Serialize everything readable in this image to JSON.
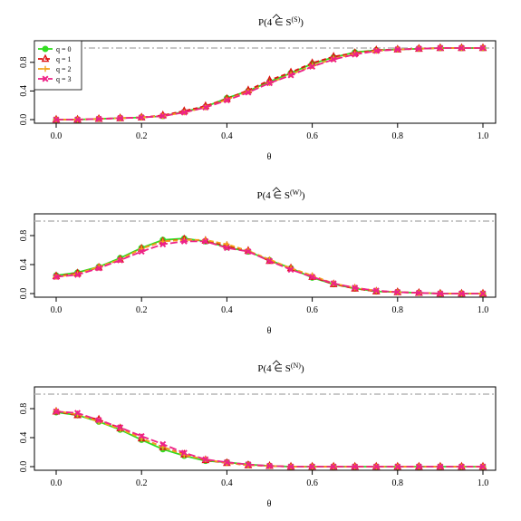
{
  "chart_data": [
    {
      "type": "line",
      "title_prefix": "P(4 ∈ ",
      "title_symbol": "S",
      "title_sup": "(S)",
      "title_suffix": ")",
      "xlabel": "θ",
      "xlim": [
        0,
        1
      ],
      "ylim": [
        0,
        1
      ],
      "xticks": [
        "0.0",
        "0.2",
        "0.4",
        "0.6",
        "0.8",
        "1.0"
      ],
      "yticks": [
        "0.0",
        "0.4",
        "0.8"
      ],
      "reference_line": 1.0,
      "legend_position": "top-left",
      "x": [
        0,
        0.05,
        0.1,
        0.15,
        0.2,
        0.25,
        0.3,
        0.35,
        0.4,
        0.45,
        0.5,
        0.55,
        0.6,
        0.65,
        0.7,
        0.75,
        0.8,
        0.85,
        0.9,
        0.95,
        1.0
      ],
      "series": [
        {
          "name": "q = 0",
          "color": "#33dd22",
          "marker": "circle",
          "dash": "solid",
          "values": [
            0.0,
            0.0,
            0.01,
            0.02,
            0.03,
            0.05,
            0.11,
            0.18,
            0.3,
            0.4,
            0.53,
            0.65,
            0.78,
            0.87,
            0.94,
            0.97,
            0.98,
            0.99,
            1.0,
            1.0,
            1.0
          ]
        },
        {
          "name": "q = 1",
          "color": "#dd1111",
          "marker": "triangle",
          "dash": "dashed",
          "values": [
            0.0,
            0.0,
            0.01,
            0.02,
            0.03,
            0.06,
            0.12,
            0.19,
            0.29,
            0.41,
            0.55,
            0.66,
            0.79,
            0.88,
            0.93,
            0.97,
            0.98,
            0.99,
            1.0,
            1.0,
            1.0
          ]
        },
        {
          "name": "q = 2",
          "color": "#f2a51a",
          "marker": "plus",
          "dash": "dashed",
          "values": [
            0.0,
            0.0,
            0.01,
            0.02,
            0.03,
            0.05,
            0.1,
            0.17,
            0.28,
            0.39,
            0.51,
            0.63,
            0.75,
            0.85,
            0.92,
            0.96,
            0.98,
            0.99,
            1.0,
            1.0,
            1.0
          ]
        },
        {
          "name": "q = 3",
          "color": "#ee2288",
          "marker": "x",
          "dash": "longdash",
          "values": [
            0.0,
            0.0,
            0.01,
            0.02,
            0.03,
            0.05,
            0.1,
            0.17,
            0.27,
            0.38,
            0.51,
            0.62,
            0.74,
            0.84,
            0.91,
            0.96,
            0.98,
            0.99,
            1.0,
            1.0,
            1.0
          ]
        }
      ]
    },
    {
      "type": "line",
      "title_prefix": "P(4 ∈ ",
      "title_symbol": "S",
      "title_sup": "(W)",
      "title_suffix": ")",
      "xlabel": "θ",
      "xlim": [
        0,
        1
      ],
      "ylim": [
        0,
        1
      ],
      "xticks": [
        "0.0",
        "0.2",
        "0.4",
        "0.6",
        "0.8",
        "1.0"
      ],
      "yticks": [
        "0.0",
        "0.4",
        "0.8"
      ],
      "reference_line": 1.0,
      "x": [
        0,
        0.05,
        0.1,
        0.15,
        0.2,
        0.25,
        0.3,
        0.35,
        0.4,
        0.45,
        0.5,
        0.55,
        0.6,
        0.65,
        0.7,
        0.75,
        0.8,
        0.85,
        0.9,
        0.95,
        1.0
      ],
      "series": [
        {
          "name": "q = 0",
          "color": "#33dd22",
          "marker": "circle",
          "dash": "solid",
          "values": [
            0.25,
            0.29,
            0.37,
            0.49,
            0.63,
            0.74,
            0.76,
            0.72,
            0.64,
            0.58,
            0.46,
            0.35,
            0.22,
            0.13,
            0.07,
            0.03,
            0.02,
            0.01,
            0.0,
            0.0,
            0.0
          ]
        },
        {
          "name": "q = 1",
          "color": "#dd1111",
          "marker": "triangle",
          "dash": "dashed",
          "values": [
            0.24,
            0.28,
            0.36,
            0.47,
            0.62,
            0.72,
            0.75,
            0.73,
            0.66,
            0.59,
            0.45,
            0.35,
            0.23,
            0.13,
            0.07,
            0.03,
            0.02,
            0.01,
            0.0,
            0.0,
            0.0
          ]
        },
        {
          "name": "q = 2",
          "color": "#f2a51a",
          "marker": "plus",
          "dash": "dashed",
          "values": [
            0.23,
            0.27,
            0.37,
            0.47,
            0.62,
            0.72,
            0.74,
            0.74,
            0.68,
            0.59,
            0.47,
            0.35,
            0.25,
            0.14,
            0.08,
            0.04,
            0.02,
            0.01,
            0.0,
            0.0,
            0.0
          ]
        },
        {
          "name": "q = 3",
          "color": "#ee2288",
          "marker": "x",
          "dash": "longdash",
          "values": [
            0.23,
            0.26,
            0.35,
            0.46,
            0.58,
            0.68,
            0.72,
            0.72,
            0.63,
            0.58,
            0.45,
            0.33,
            0.23,
            0.14,
            0.08,
            0.04,
            0.02,
            0.01,
            0.0,
            0.0,
            0.0
          ]
        }
      ]
    },
    {
      "type": "line",
      "title_prefix": "P(4 ∈ ",
      "title_symbol": "S",
      "title_sup": "(N)",
      "title_suffix": ")",
      "xlabel": "θ",
      "xlim": [
        0,
        1
      ],
      "ylim": [
        0,
        1
      ],
      "xticks": [
        "0.0",
        "0.2",
        "0.4",
        "0.6",
        "0.8",
        "1.0"
      ],
      "yticks": [
        "0.0",
        "0.4",
        "0.8"
      ],
      "reference_line": 1.0,
      "x": [
        0,
        0.05,
        0.1,
        0.15,
        0.2,
        0.25,
        0.3,
        0.35,
        0.4,
        0.45,
        0.5,
        0.55,
        0.6,
        0.65,
        0.7,
        0.75,
        0.8,
        0.85,
        0.9,
        0.95,
        1.0
      ],
      "series": [
        {
          "name": "q = 0",
          "color": "#33dd22",
          "marker": "circle",
          "dash": "solid",
          "values": [
            0.75,
            0.71,
            0.62,
            0.51,
            0.37,
            0.24,
            0.15,
            0.08,
            0.06,
            0.03,
            0.01,
            0.0,
            0.0,
            0.0,
            0.0,
            0.0,
            0.0,
            0.0,
            0.0,
            0.0,
            0.0
          ]
        },
        {
          "name": "q = 1",
          "color": "#dd1111",
          "marker": "triangle",
          "dash": "dashed",
          "values": [
            0.76,
            0.71,
            0.65,
            0.53,
            0.39,
            0.27,
            0.17,
            0.09,
            0.05,
            0.02,
            0.01,
            0.0,
            0.0,
            0.0,
            0.0,
            0.0,
            0.0,
            0.0,
            0.0,
            0.0,
            0.0
          ]
        },
        {
          "name": "q = 2",
          "color": "#f2a51a",
          "marker": "plus",
          "dash": "dashed",
          "values": [
            0.77,
            0.72,
            0.62,
            0.52,
            0.39,
            0.27,
            0.16,
            0.1,
            0.05,
            0.02,
            0.01,
            0.0,
            0.0,
            0.0,
            0.0,
            0.0,
            0.0,
            0.0,
            0.0,
            0.0,
            0.0
          ]
        },
        {
          "name": "q = 3",
          "color": "#ee2288",
          "marker": "x",
          "dash": "longdash",
          "values": [
            0.76,
            0.74,
            0.64,
            0.54,
            0.42,
            0.31,
            0.19,
            0.1,
            0.06,
            0.03,
            0.01,
            0.0,
            0.0,
            0.0,
            0.0,
            0.0,
            0.0,
            0.0,
            0.0,
            0.0,
            0.0
          ]
        }
      ]
    }
  ]
}
